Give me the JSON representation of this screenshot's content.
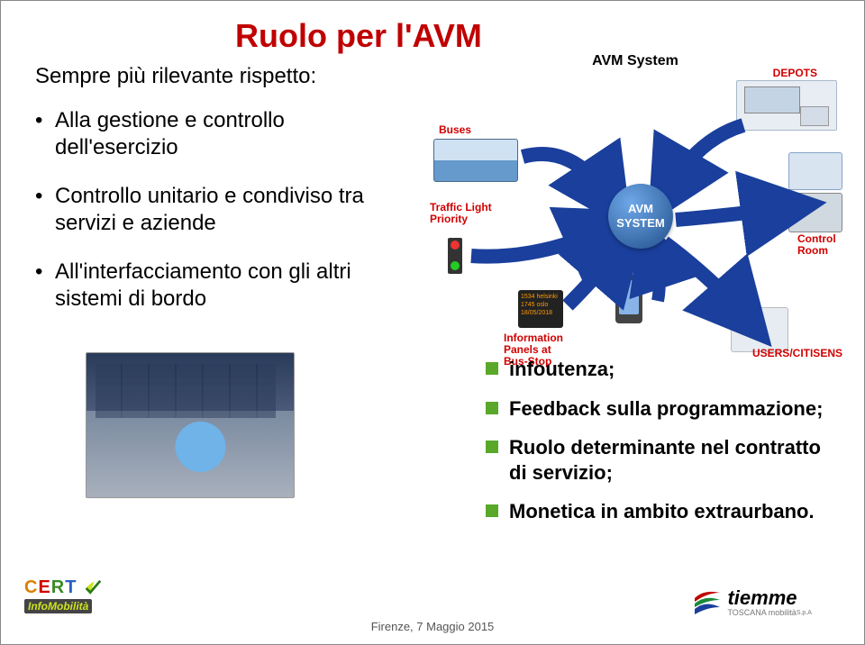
{
  "title": {
    "text": "Ruolo per l'AVM",
    "color": "#c00000",
    "fontsize": 36
  },
  "subtitle": "Sempre più rilevante rispetto:",
  "bullets": [
    "Alla gestione e controllo dell'esercizio",
    "Controllo unitario e condiviso tra servizi e aziende",
    "All'interfacciamento con gli altri sistemi di bordo"
  ],
  "diagram": {
    "title": "AVM System",
    "center": "AVM SYSTEM",
    "labels": {
      "buses": "Buses",
      "buses_color": "#d00000",
      "depots": "DEPOTS",
      "depots_color": "#d00000",
      "traffic": "Traffic Light Priority",
      "traffic_color": "#d00000",
      "control": "Control Room",
      "control_color": "#d00000",
      "panels": "Information Panels at Bus-Stop",
      "panels_color": "#d00000",
      "users": "USERS/CITISENS",
      "users_color": "#d00000"
    },
    "panel_lines": [
      "1534 helsinki",
      "1745 oslo",
      "18/05/2018"
    ],
    "arrow_color": "#1a3f9c"
  },
  "green_bullets": {
    "marker_color": "#5aa82a",
    "items": [
      "infoutenza;",
      "Feedback sulla programmazione;",
      "Ruolo determinante nel contratto di servizio;",
      "Monetica in ambito extraurbano."
    ]
  },
  "footer": "Firenze, 7 Maggio 2015",
  "logo_left": {
    "cert_c": "C",
    "cert_e": "E",
    "cert_r": "R",
    "cert_t": "T",
    "c_color": "#d98000",
    "e_color": "#d00000",
    "r_color": "#3a8a28",
    "t_color": "#2860c0",
    "info": "InfoMobilità",
    "check_body": "#cde41e",
    "check_tick": "#2a7a18"
  },
  "logo_right": {
    "name": "tiemme",
    "sub": "TOSCANA mobilità",
    "spa": "S.p.A",
    "wave_red": "#c00000",
    "wave_green": "#1a8a3a",
    "wave_blue": "#1a3f9c"
  }
}
